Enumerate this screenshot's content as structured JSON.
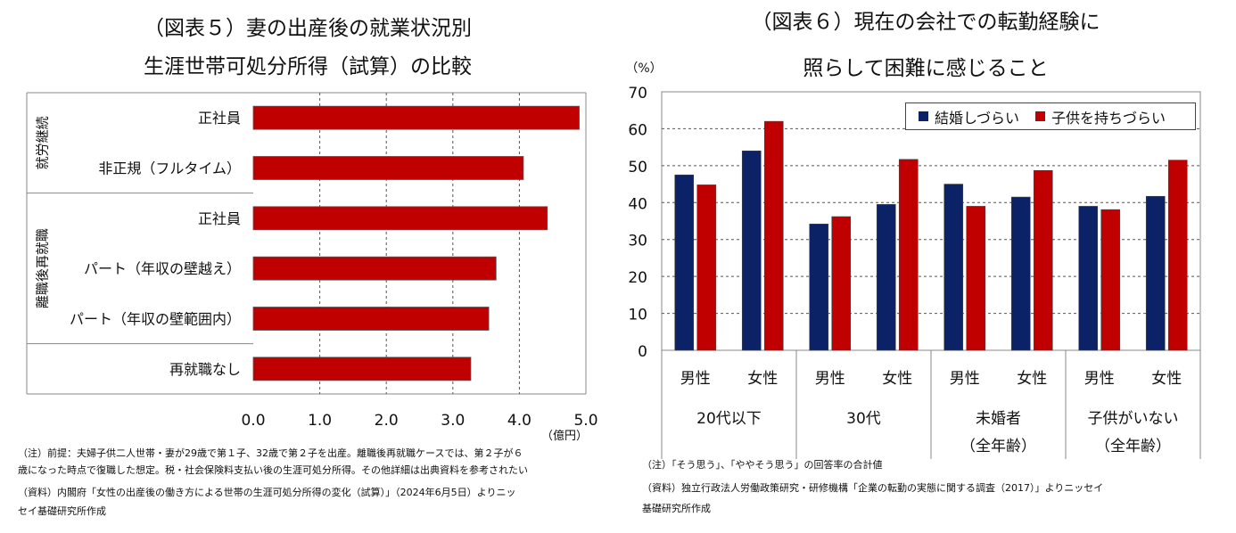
{
  "left": {
    "title": [
      "（図表５）妻の出産後の就業状況別",
      "生涯世帯可処分所得（試算）の比較"
    ],
    "notes": [
      "（注）前提：夫婦子供二人世帯・妻が29歳で第１子、32歳で第２子を出産。離職後再就職ケースでは、第２子が６",
      "歳になった時点で復職した想定。税・社会保険料支払い後の生涯可処分所得。その他詳細は出典資料を参考されたい",
      "（資料）内閣府「女性の出産後の働き方による世帯の生涯可処分所得の変化（試算）」（2024年6月5日）よりニッ",
      "セイ基礎研究所作成"
    ]
  },
  "right": {
    "title": [
      "（図表６）現在の会社での転勤経験に",
      "照らして困難に感じること"
    ],
    "notes": [
      "（注）「そう思う」、「ややそう思う」の回答率の合計値",
      "（資料）独立行政法人労働政策研究・研修機構「企業の転勤の実態に関する調査（2017）」よりニッセイ",
      "基礎研究所作成"
    ]
  },
  "chart_data": [
    {
      "type": "bar",
      "orientation": "horizontal",
      "title": "（図表５）妻の出産後の就業状況別 生涯世帯可処分所得（試算）の比較",
      "categories": [
        "正社員",
        "非正規（フルタイム）",
        "正社員",
        "パート（年収の壁越え）",
        "パート（年収の壁範囲内）",
        "再就職なし"
      ],
      "groups": [
        {
          "label": "就労継続",
          "categories": [
            0,
            1
          ]
        },
        {
          "label": "離職後再就職",
          "categories": [
            2,
            3,
            4
          ]
        }
      ],
      "values": [
        4.9,
        4.06,
        4.42,
        3.65,
        3.54,
        3.27
      ],
      "xlim": [
        0,
        5
      ],
      "xticks": [
        "0.0",
        "1.0",
        "2.0",
        "3.0",
        "4.0",
        "5.0"
      ],
      "xlabel": "（億円）",
      "grid": true,
      "color": "#c00000"
    },
    {
      "type": "bar",
      "title": "（図表６）現在の会社での転勤経験に 照らして困難に感じること",
      "ylabel": "（%）",
      "ylim": [
        0,
        70
      ],
      "yticks": [
        "0",
        "10",
        "20",
        "30",
        "40",
        "50",
        "60",
        "70"
      ],
      "grid": true,
      "categories": [
        "男性",
        "女性",
        "男性",
        "女性",
        "男性",
        "女性",
        "男性",
        "女性"
      ],
      "groups": [
        {
          "label": [
            "20代以下"
          ]
        },
        {
          "label": [
            "30代"
          ]
        },
        {
          "label": [
            "未婚者",
            "（全年齢）"
          ]
        },
        {
          "label": [
            "子供がいない",
            "（全年齢）"
          ]
        }
      ],
      "legend_position": "top-right",
      "series": [
        {
          "name": "結婚しづらい",
          "color": "#0c2266",
          "values": [
            47.5,
            54,
            34.2,
            39.5,
            45,
            41.5,
            39,
            41.7
          ]
        },
        {
          "name": "子供を持ちづらい",
          "color": "#c00000",
          "values": [
            44.8,
            62,
            36.2,
            51.7,
            39,
            48.7,
            38.1,
            51.5
          ]
        }
      ]
    }
  ]
}
